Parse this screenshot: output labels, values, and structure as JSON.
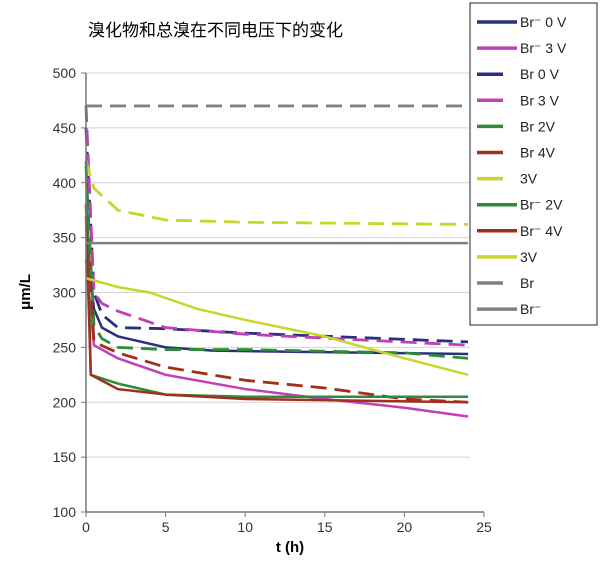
{
  "chart_data": {
    "type": "line",
    "title": "溴化物和总溴在不同电压下的变化",
    "xlabel": "t (h)",
    "ylabel": "μm/L",
    "xlim": [
      0,
      25
    ],
    "ylim": [
      100,
      500
    ],
    "xticks": [
      0,
      5,
      10,
      15,
      20,
      25
    ],
    "yticks": [
      100,
      150,
      200,
      250,
      300,
      350,
      400,
      450,
      500
    ],
    "grid": "horizontal",
    "legend_placement": "right",
    "series": [
      {
        "name": "Br⁻ 0 V",
        "color": "#2b2f7f",
        "style": "solid",
        "x": [
          0.1,
          0.5,
          1,
          2,
          5,
          8,
          24
        ],
        "y": [
          340,
          285,
          268,
          260,
          250,
          247,
          244
        ]
      },
      {
        "name": "Br⁻ 3 V",
        "color": "#c040b8",
        "style": "solid",
        "x": [
          0,
          0.5,
          2,
          5,
          10,
          15,
          20,
          24
        ],
        "y": [
          330,
          252,
          240,
          225,
          212,
          203,
          195,
          187
        ]
      },
      {
        "name": "Br 0 V",
        "color": "#2b2f7f",
        "style": "dashed",
        "x": [
          0,
          0.5,
          1,
          2,
          5,
          10,
          24
        ],
        "y": [
          450,
          300,
          280,
          268,
          267,
          263,
          255
        ]
      },
      {
        "name": "Br 3 V",
        "color": "#c040b8",
        "style": "dashed",
        "x": [
          0,
          0.5,
          1,
          2,
          5,
          10,
          24
        ],
        "y": [
          470,
          300,
          290,
          283,
          268,
          262,
          252
        ]
      },
      {
        "name": "Br 2V",
        "color": "#2e8b3a",
        "style": "dashed",
        "x": [
          0,
          0.5,
          1,
          2,
          5,
          10,
          20,
          24
        ],
        "y": [
          415,
          270,
          258,
          250,
          248,
          248,
          245,
          240
        ]
      },
      {
        "name": "Br 4V",
        "color": "#a0301e",
        "style": "dashed",
        "x": [
          0,
          0.5,
          2,
          5,
          10,
          15,
          20,
          24
        ],
        "y": [
          380,
          255,
          245,
          232,
          220,
          213,
          203,
          200
        ]
      },
      {
        "name": "3V",
        "color": "#c8d52a",
        "style": "dashed",
        "x": [
          0,
          0.5,
          2,
          5,
          10,
          24
        ],
        "y": [
          420,
          395,
          375,
          366,
          364,
          362
        ]
      },
      {
        "name": "Br⁻ 2V",
        "color": "#2e8b3a",
        "style": "solid",
        "x": [
          0,
          0.3,
          2,
          5,
          10,
          24
        ],
        "y": [
          420,
          225,
          217,
          207,
          205,
          205
        ]
      },
      {
        "name": "Br⁻ 4V",
        "color": "#a0301e",
        "style": "solid",
        "x": [
          0,
          0.3,
          2,
          5,
          10,
          24
        ],
        "y": [
          370,
          225,
          212,
          207,
          203,
          200
        ]
      },
      {
        "name": "3V",
        "color": "#c8d52a",
        "style": "solid",
        "x": [
          0,
          2,
          4,
          7,
          10,
          15,
          20,
          24
        ],
        "y": [
          313,
          305,
          300,
          285,
          275,
          260,
          240,
          225
        ]
      },
      {
        "name": "Br",
        "color": "#808080",
        "style": "dashed",
        "x": [
          0,
          24
        ],
        "y": [
          470,
          470
        ]
      },
      {
        "name": "Br⁻",
        "color": "#808080",
        "style": "solid",
        "x": [
          0,
          24
        ],
        "y": [
          345,
          345
        ]
      }
    ]
  }
}
